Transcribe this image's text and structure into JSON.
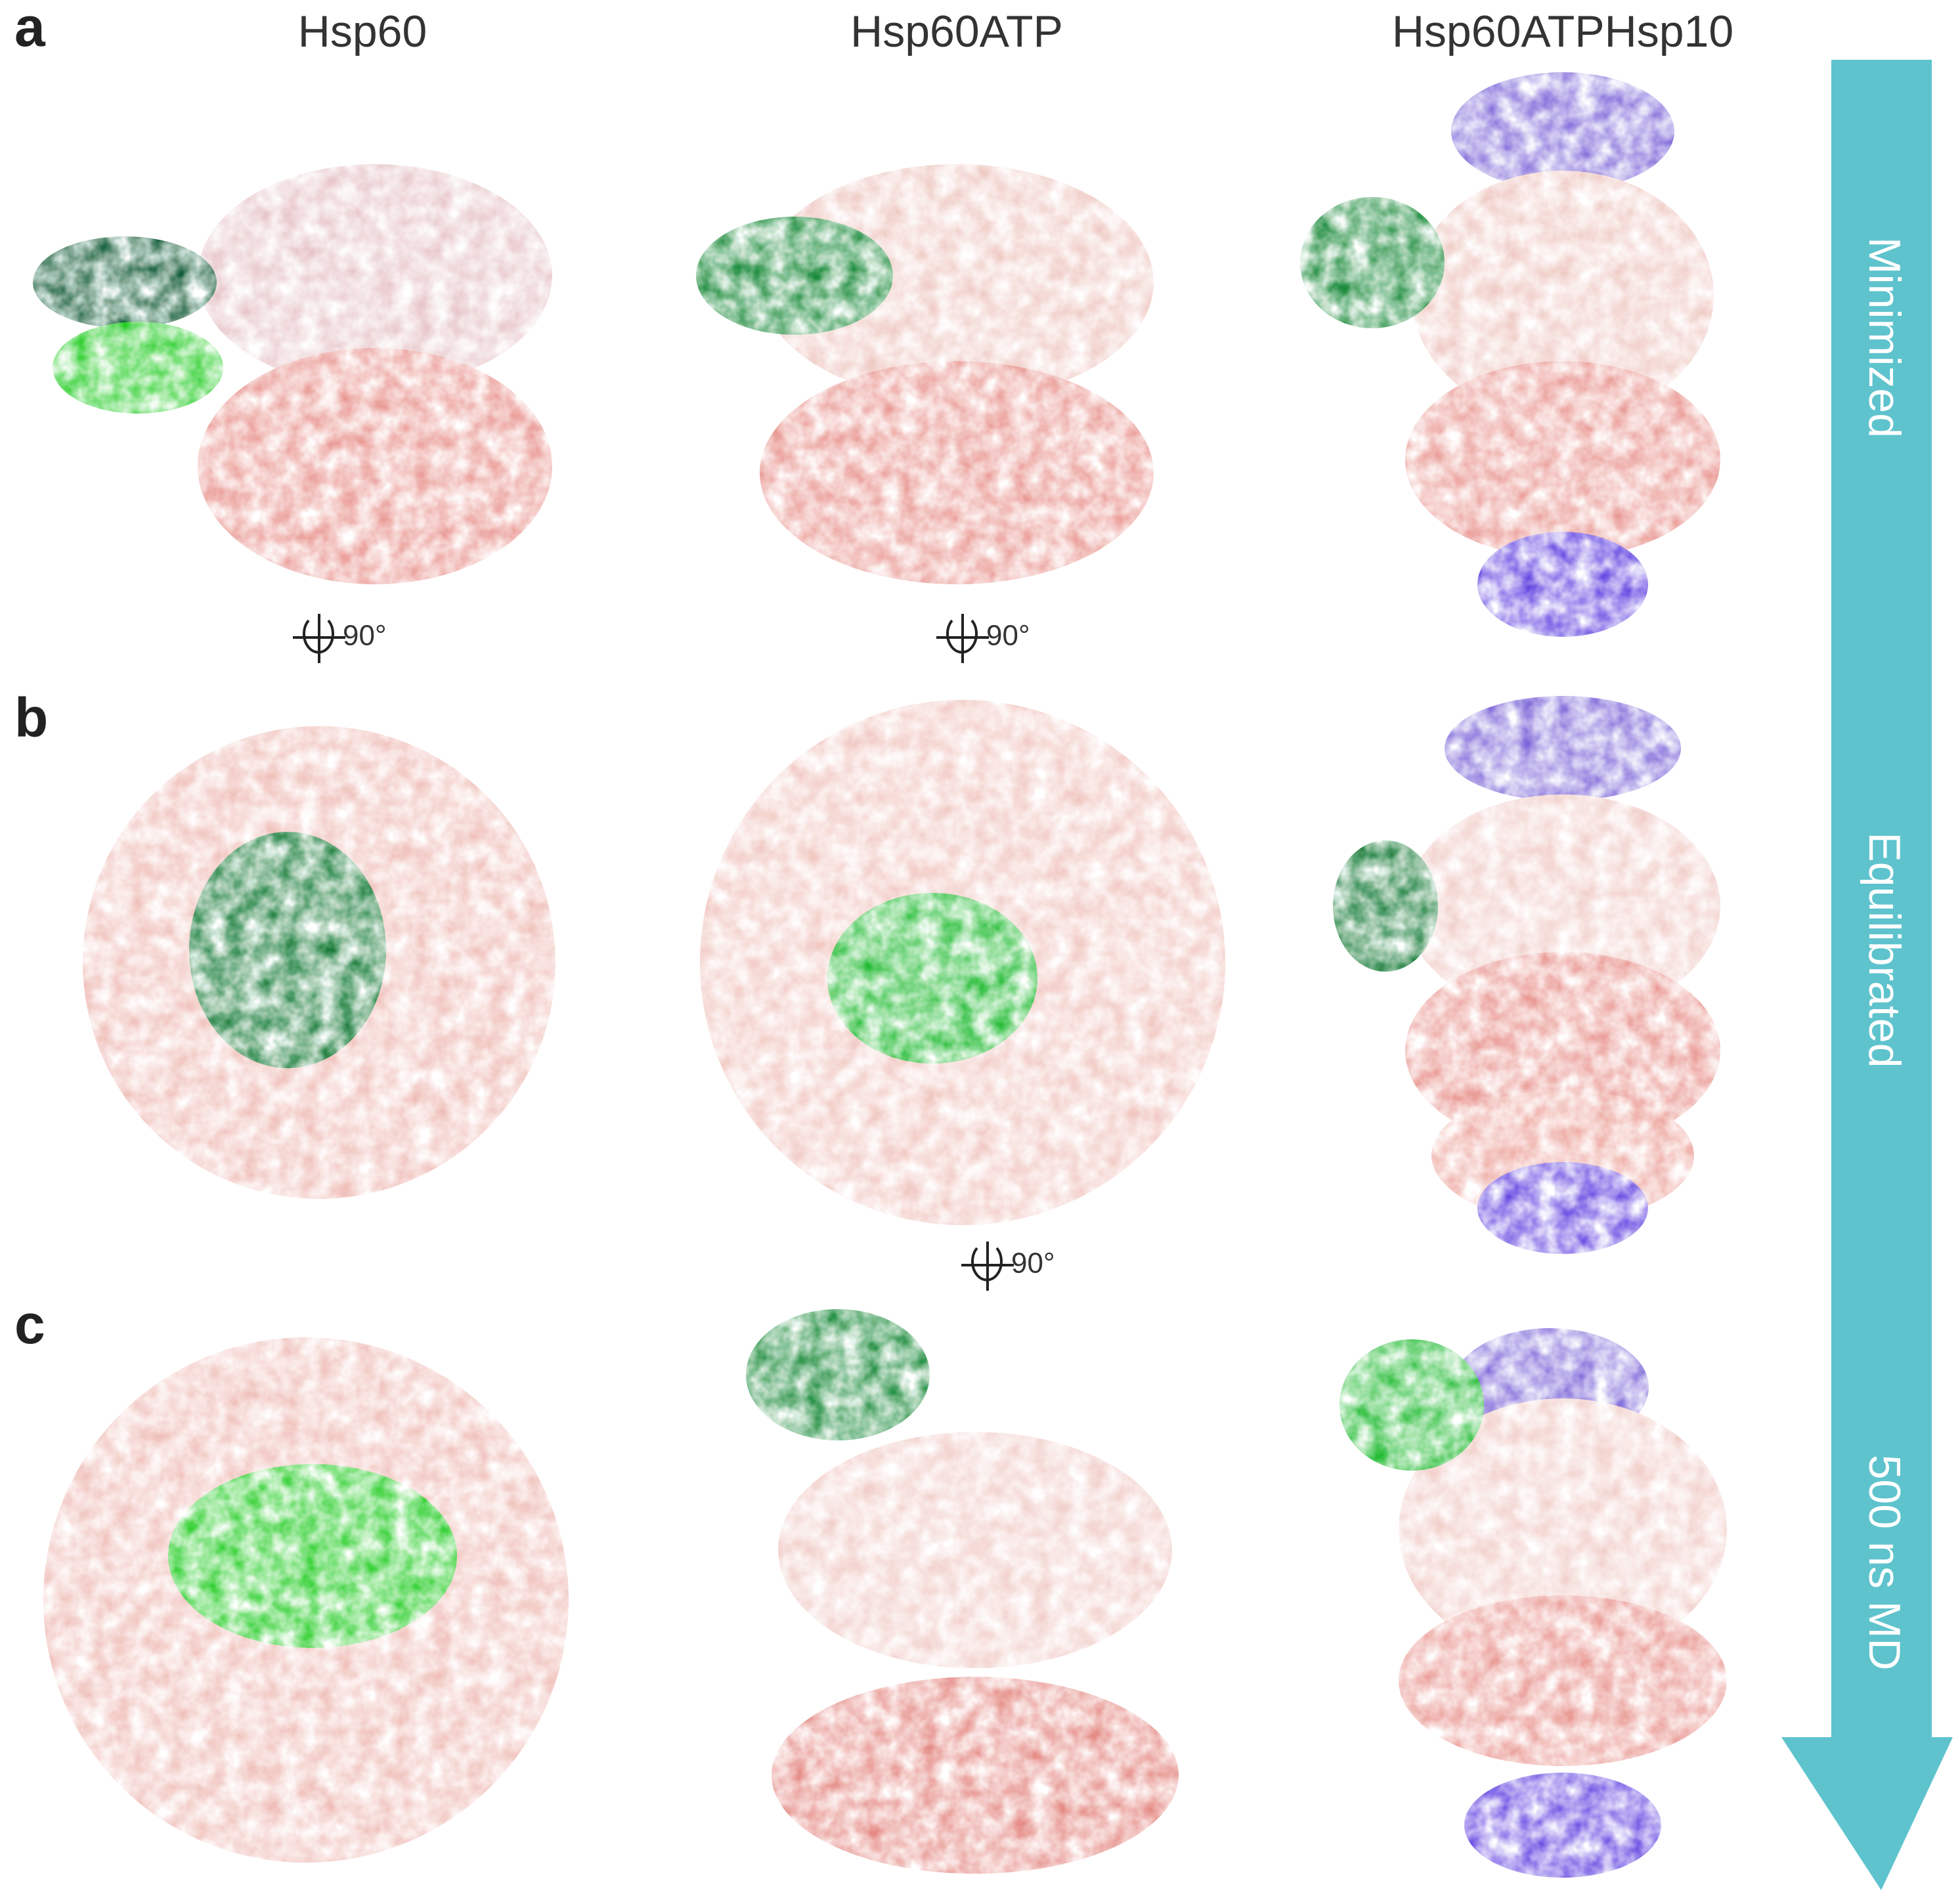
{
  "columns": [
    "Hsp60",
    "Hsp60ATP",
    "Hsp60ATPHsp10"
  ],
  "panels": [
    "a",
    "b",
    "c"
  ],
  "arrow_labels": [
    "Minimized",
    "Equilibrated",
    "500 ns MD"
  ],
  "rotation_labels": [
    "90°",
    "90°",
    "90°"
  ]
}
